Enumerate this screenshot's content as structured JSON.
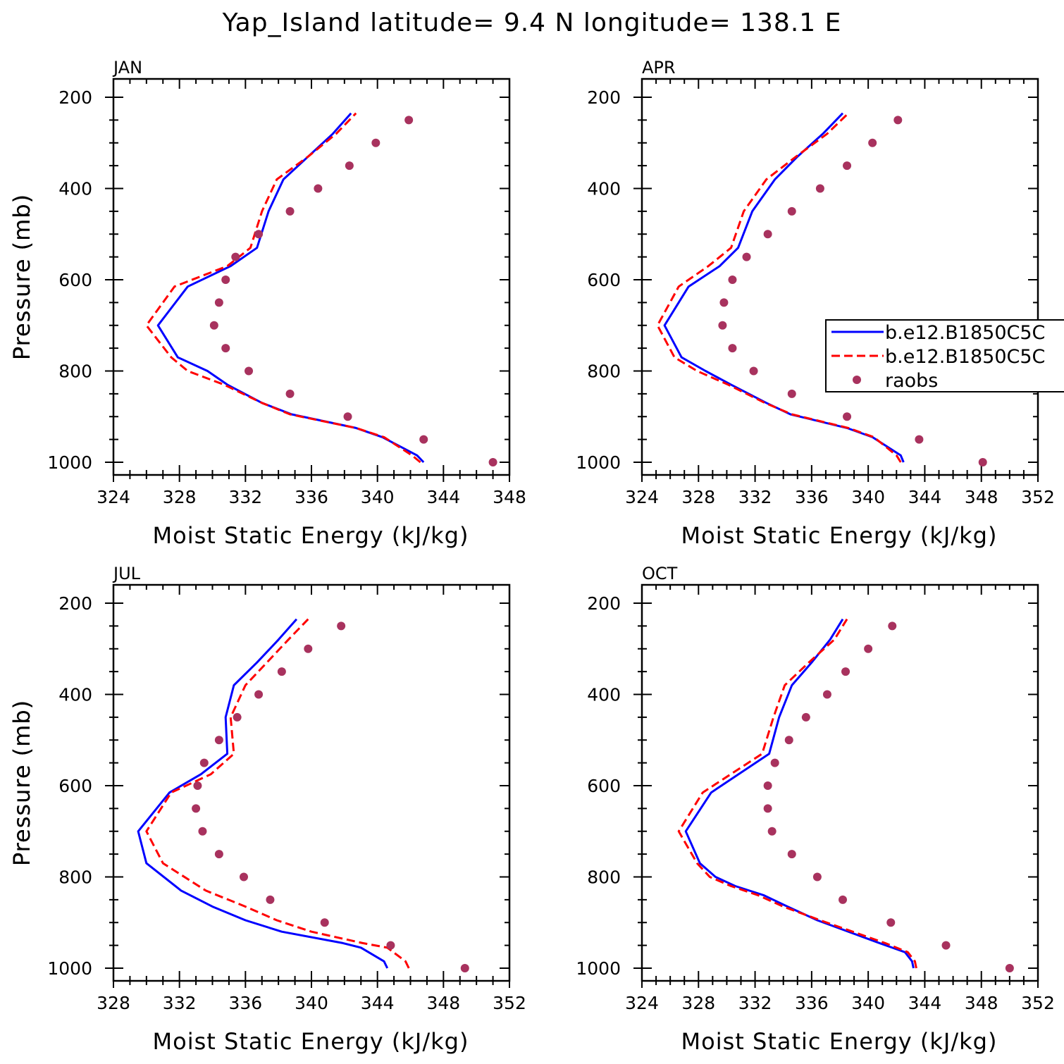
{
  "figure": {
    "title": "Yap_Island  latitude= 9.4 N longitude= 138.1 E"
  },
  "colors": {
    "model_a": "#0000ff",
    "model_b": "#ff0000",
    "raobs": "#a8325e"
  },
  "legend": {
    "entries": [
      "b.e12.B1850C5C",
      "b.e12.B1850C5C",
      "raobs"
    ]
  },
  "chart_data": [
    {
      "type": "line",
      "panel": "JAN",
      "xlabel": "Moist Static Energy (kJ/kg)",
      "ylabel": "Pressure (mb)",
      "xlim": [
        324,
        348
      ],
      "xticks": [
        324,
        328,
        332,
        336,
        340,
        344,
        348
      ],
      "ylim": [
        1000,
        200
      ],
      "yticks": [
        200,
        400,
        600,
        800,
        1000
      ],
      "series": [
        {
          "name": "b.e12.B1850C5C",
          "style": "solid",
          "x": [
            342.8,
            342.4,
            340.3,
            338.7,
            334.8,
            333.0,
            330.9,
            329.7,
            327.9,
            326.7,
            328.5,
            331.1,
            332.7,
            333.4,
            334.3,
            335.8,
            337.3,
            338.4
          ],
          "y": [
            1000,
            985,
            945,
            925,
            895,
            870,
            830,
            800,
            770,
            700,
            615,
            570,
            530,
            450,
            380,
            330,
            280,
            235
          ]
        },
        {
          "name": "b.e12.B1850C5C",
          "style": "dashed",
          "x": [
            342.6,
            342.1,
            340.4,
            338.7,
            334.7,
            333.0,
            330.7,
            328.5,
            327.5,
            326.0,
            327.7,
            330.9,
            332.3,
            333.0,
            333.9,
            335.8,
            337.5,
            338.7
          ],
          "y": [
            1000,
            985,
            945,
            925,
            895,
            870,
            830,
            800,
            770,
            700,
            615,
            570,
            530,
            450,
            380,
            330,
            280,
            235
          ]
        },
        {
          "name": "raobs",
          "style": "markers",
          "x": [
            347.0,
            342.8,
            338.2,
            334.7,
            332.2,
            330.8,
            330.1,
            330.4,
            330.8,
            331.4,
            332.8,
            334.7,
            336.4,
            338.3,
            339.9,
            341.9
          ],
          "y": [
            1000,
            950,
            900,
            850,
            800,
            750,
            700,
            650,
            600,
            550,
            500,
            450,
            400,
            350,
            300,
            250
          ]
        }
      ]
    },
    {
      "type": "line",
      "panel": "APR",
      "xlabel": "Moist Static Energy (kJ/kg)",
      "ylabel": "Pressure (mb)",
      "xlim": [
        324,
        352
      ],
      "xticks": [
        324,
        328,
        332,
        336,
        340,
        344,
        348,
        352
      ],
      "ylim": [
        1000,
        200
      ],
      "yticks": [
        200,
        400,
        600,
        800,
        1000
      ],
      "series": [
        {
          "name": "b.e12.B1850C5C",
          "style": "solid",
          "x": [
            342.5,
            342.3,
            340.3,
            338.5,
            334.5,
            332.8,
            330.3,
            328.5,
            326.8,
            325.6,
            327.3,
            329.5,
            330.8,
            331.8,
            333.4,
            335.0,
            336.8,
            338.2
          ],
          "y": [
            1000,
            985,
            945,
            925,
            895,
            870,
            830,
            800,
            770,
            700,
            615,
            570,
            530,
            450,
            380,
            330,
            280,
            235
          ]
        },
        {
          "name": "b.e12.B1850C5C",
          "style": "dashed",
          "x": [
            342.3,
            342.0,
            340.4,
            338.6,
            334.6,
            332.7,
            330.1,
            327.9,
            326.3,
            325.1,
            326.6,
            328.7,
            330.3,
            331.2,
            332.8,
            334.9,
            337.1,
            338.6
          ],
          "y": [
            1000,
            985,
            945,
            925,
            895,
            870,
            830,
            800,
            770,
            700,
            615,
            570,
            530,
            450,
            380,
            330,
            280,
            235
          ]
        },
        {
          "name": "raobs",
          "style": "markers",
          "x": [
            348.1,
            343.6,
            338.5,
            334.6,
            331.9,
            330.4,
            329.7,
            329.8,
            330.4,
            331.4,
            332.9,
            334.6,
            336.6,
            338.5,
            340.3,
            342.1
          ],
          "y": [
            1000,
            950,
            900,
            850,
            800,
            750,
            700,
            650,
            600,
            550,
            500,
            450,
            400,
            350,
            300,
            250
          ]
        }
      ]
    },
    {
      "type": "line",
      "panel": "JUL",
      "xlabel": "Moist Static Energy (kJ/kg)",
      "ylabel": "Pressure (mb)",
      "xlim": [
        328,
        352
      ],
      "xticks": [
        328,
        332,
        336,
        340,
        344,
        348,
        352
      ],
      "ylim": [
        1000,
        200
      ],
      "yticks": [
        200,
        400,
        600,
        800,
        1000
      ],
      "series": [
        {
          "name": "b.e12.B1850C5C",
          "style": "solid",
          "x": [
            344.6,
            344.4,
            343.0,
            341.9,
            338.2,
            336.0,
            334.0,
            332.1,
            330.0,
            329.5,
            331.4,
            333.3,
            334.9,
            334.8,
            335.3,
            336.7,
            338.0,
            339.1
          ],
          "y": [
            1000,
            985,
            955,
            945,
            920,
            895,
            865,
            830,
            770,
            700,
            615,
            575,
            530,
            450,
            380,
            330,
            280,
            235
          ]
        },
        {
          "name": "b.e12.B1850C5C",
          "style": "dashed",
          "x": [
            345.9,
            345.7,
            344.6,
            343.1,
            340.0,
            337.9,
            336.0,
            333.6,
            331.0,
            330.0,
            331.5,
            333.9,
            335.3,
            335.1,
            336.0,
            337.3,
            338.6,
            339.8
          ],
          "y": [
            1000,
            985,
            955,
            945,
            920,
            895,
            865,
            830,
            770,
            700,
            615,
            575,
            530,
            450,
            380,
            330,
            280,
            235
          ]
        },
        {
          "name": "raobs",
          "style": "markers",
          "x": [
            349.3,
            344.8,
            340.8,
            337.5,
            335.9,
            334.4,
            333.4,
            333.0,
            333.1,
            333.5,
            334.4,
            335.5,
            336.8,
            338.2,
            339.8,
            341.8
          ],
          "y": [
            1000,
            950,
            900,
            850,
            800,
            750,
            700,
            650,
            600,
            550,
            500,
            450,
            400,
            350,
            300,
            250
          ]
        }
      ]
    },
    {
      "type": "line",
      "panel": "OCT",
      "xlabel": "Moist Static Energy (kJ/kg)",
      "ylabel": "Pressure (mb)",
      "xlim": [
        324,
        352
      ],
      "xticks": [
        324,
        328,
        332,
        336,
        340,
        344,
        348,
        352
      ],
      "ylim": [
        1000,
        200
      ],
      "yticks": [
        200,
        400,
        600,
        800,
        1000
      ],
      "series": [
        {
          "name": "b.e12.B1850C5C",
          "style": "solid",
          "x": [
            343.2,
            343.1,
            342.6,
            340.8,
            336.4,
            334.3,
            332.6,
            330.6,
            329.2,
            328.1,
            327.1,
            328.9,
            333.0,
            333.7,
            334.6,
            336.0,
            337.3,
            338.2
          ],
          "y": [
            1000,
            985,
            965,
            945,
            895,
            865,
            840,
            820,
            800,
            770,
            700,
            615,
            530,
            450,
            380,
            330,
            280,
            235
          ]
        },
        {
          "name": "b.e12.B1850C5C",
          "style": "dashed",
          "x": [
            343.4,
            343.3,
            342.8,
            341.2,
            336.6,
            334.0,
            332.2,
            330.3,
            328.8,
            327.9,
            326.6,
            328.3,
            332.5,
            333.3,
            334.1,
            335.8,
            337.6,
            338.5
          ],
          "y": [
            1000,
            985,
            965,
            945,
            895,
            865,
            840,
            820,
            800,
            770,
            700,
            615,
            530,
            450,
            380,
            330,
            280,
            235
          ]
        },
        {
          "name": "raobs",
          "style": "markers",
          "x": [
            350.0,
            345.5,
            341.6,
            338.2,
            336.4,
            334.6,
            333.2,
            332.9,
            332.9,
            333.4,
            334.4,
            335.6,
            337.1,
            338.4,
            340.0,
            341.7
          ],
          "y": [
            1000,
            950,
            900,
            850,
            800,
            750,
            700,
            650,
            600,
            550,
            500,
            450,
            400,
            350,
            300,
            250
          ]
        }
      ]
    }
  ]
}
